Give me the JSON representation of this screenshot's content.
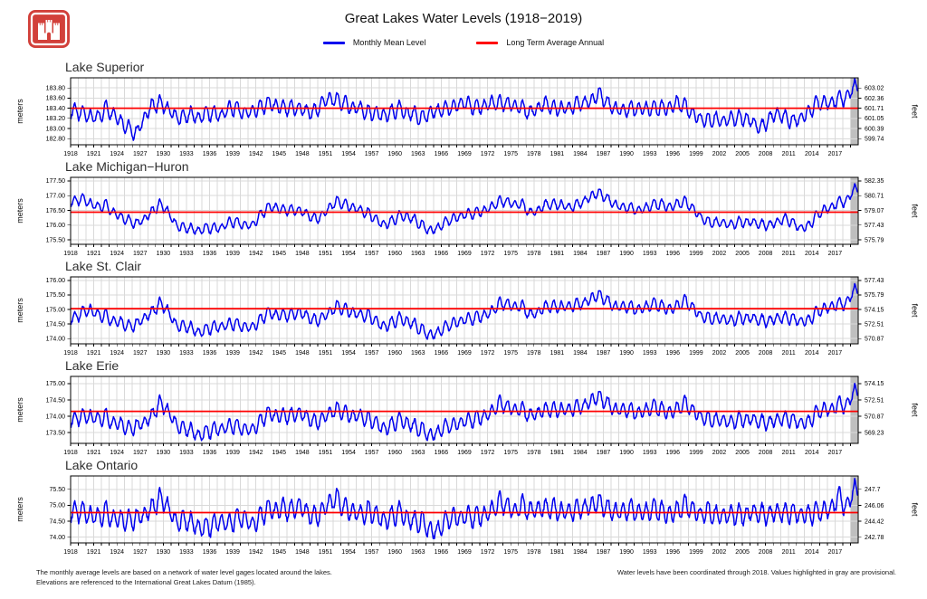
{
  "header": {
    "title": "Great Lakes Water Levels (1918−2019)",
    "logo": "usace-castle-logo",
    "legend": [
      {
        "label": "Monthly Mean Level",
        "color": "#0000ee"
      },
      {
        "label": "Long Term Average Annual",
        "color": "#ff0000"
      }
    ]
  },
  "footer": {
    "left_line1": "The monthly average levels are based on a network of water level gages located around the lakes.",
    "left_line2": "Elevations are referenced to the International Great Lakes Datum (1985).",
    "right_line": "Water levels have been coordinated through 2018. Values highlighted in gray are provisional."
  },
  "colors": {
    "monthly_line": "#0000ee",
    "average_line": "#ff0000",
    "grid": "#d9d9d9",
    "provisional_band": "#bfbfbf",
    "axis": "#000000",
    "logo_red": "#d2403a"
  },
  "x_axis": {
    "start": 1918,
    "end": 2020,
    "year_tick_labels": [
      1918,
      1921,
      1924,
      1927,
      1930,
      1933,
      1936,
      1939,
      1942,
      1945,
      1948,
      1951,
      1954,
      1957,
      1960,
      1963,
      1966,
      1969,
      1972,
      1975,
      1978,
      1981,
      1984,
      1987,
      1990,
      1993,
      1996,
      1999,
      2002,
      2005,
      2008,
      2011,
      2014,
      2017
    ]
  },
  "chart_data": [
    {
      "type": "line",
      "title": "Lake Superior",
      "ylabel_left": "meters",
      "ylabel_right": "feet",
      "ylim": [
        182.68,
        184.0
      ],
      "yticks_m": [
        "182.80",
        "183.00",
        "183.20",
        "183.40",
        "183.60",
        "183.80"
      ],
      "yticks_ft": [
        "599.74",
        "600.39",
        "601.05",
        "601.71",
        "602.36",
        "603.02"
      ],
      "long_term_avg_m": 183.4,
      "seasonal_amp_m": 0.13,
      "provisional_from": 2019,
      "annual_mean_m": [
        183.35,
        183.3,
        183.25,
        183.2,
        183.4,
        183.3,
        183.15,
        183.0,
        182.9,
        183.2,
        183.45,
        183.5,
        183.4,
        183.25,
        183.2,
        183.3,
        183.2,
        183.3,
        183.3,
        183.25,
        183.4,
        183.4,
        183.3,
        183.35,
        183.4,
        183.5,
        183.45,
        183.4,
        183.4,
        183.4,
        183.35,
        183.3,
        183.5,
        183.6,
        183.55,
        183.5,
        183.4,
        183.4,
        183.3,
        183.3,
        183.25,
        183.3,
        183.4,
        183.3,
        183.3,
        183.2,
        183.3,
        183.35,
        183.4,
        183.4,
        183.5,
        183.5,
        183.4,
        183.45,
        183.5,
        183.5,
        183.5,
        183.45,
        183.4,
        183.3,
        183.4,
        183.5,
        183.4,
        183.4,
        183.4,
        183.5,
        183.5,
        183.55,
        183.7,
        183.5,
        183.4,
        183.35,
        183.4,
        183.4,
        183.4,
        183.4,
        183.4,
        183.4,
        183.5,
        183.45,
        183.3,
        183.2,
        183.15,
        183.2,
        183.15,
        183.2,
        183.2,
        183.2,
        183.1,
        183.0,
        183.2,
        183.3,
        183.2,
        183.15,
        183.2,
        183.3,
        183.5,
        183.5,
        183.5,
        183.6,
        183.6,
        183.85
      ]
    },
    {
      "type": "line",
      "title": "Lake Michigan−Huron",
      "ylabel_left": "meters",
      "ylabel_right": "feet",
      "ylim": [
        175.35,
        177.62
      ],
      "yticks_m": [
        "175.50",
        "176.00",
        "176.50",
        "177.00",
        "177.50"
      ],
      "yticks_ft": [
        "575.79",
        "577.43",
        "579.07",
        "580.71",
        "582.35"
      ],
      "long_term_avg_m": 176.44,
      "seasonal_amp_m": 0.15,
      "provisional_from": 2019,
      "annual_mean_m": [
        176.8,
        176.9,
        176.75,
        176.6,
        176.7,
        176.45,
        176.3,
        176.15,
        176.05,
        176.2,
        176.45,
        176.7,
        176.5,
        176.05,
        175.9,
        175.9,
        175.8,
        175.9,
        175.9,
        175.9,
        176.1,
        176.1,
        176.0,
        176.0,
        176.3,
        176.6,
        176.6,
        176.5,
        176.5,
        176.5,
        176.4,
        176.2,
        176.3,
        176.6,
        176.8,
        176.7,
        176.6,
        176.5,
        176.4,
        176.2,
        176.0,
        176.1,
        176.3,
        176.3,
        176.2,
        176.0,
        175.8,
        175.9,
        176.1,
        176.2,
        176.3,
        176.4,
        176.4,
        176.5,
        176.6,
        176.8,
        176.8,
        176.7,
        176.7,
        176.4,
        176.5,
        176.7,
        176.7,
        176.7,
        176.6,
        176.7,
        176.8,
        177.0,
        177.1,
        176.9,
        176.7,
        176.6,
        176.6,
        176.5,
        176.6,
        176.7,
        176.7,
        176.6,
        176.7,
        176.8,
        176.6,
        176.3,
        176.1,
        176.1,
        176.1,
        176.0,
        176.1,
        176.1,
        176.1,
        176.0,
        176.0,
        176.1,
        176.2,
        176.1,
        175.9,
        175.95,
        176.3,
        176.5,
        176.6,
        176.8,
        176.8,
        177.25
      ]
    },
    {
      "type": "line",
      "title": "Lake St. Clair",
      "ylabel_left": "meters",
      "ylabel_right": "feet",
      "ylim": [
        173.82,
        176.12
      ],
      "yticks_m": [
        "174.00",
        "174.50",
        "175.00",
        "175.50",
        "176.00"
      ],
      "yticks_ft": [
        "570.87",
        "572.51",
        "574.15",
        "575.79",
        "577.43"
      ],
      "long_term_avg_m": 175.03,
      "seasonal_amp_m": 0.18,
      "provisional_from": 2019,
      "annual_mean_m": [
        174.7,
        174.9,
        175.0,
        174.8,
        174.8,
        174.6,
        174.6,
        174.4,
        174.5,
        174.7,
        174.9,
        175.2,
        175.0,
        174.5,
        174.4,
        174.4,
        174.2,
        174.3,
        174.4,
        174.4,
        174.5,
        174.5,
        174.4,
        174.4,
        174.6,
        174.9,
        174.8,
        174.8,
        174.8,
        174.9,
        174.8,
        174.6,
        174.7,
        174.9,
        175.1,
        175.0,
        174.9,
        174.8,
        174.8,
        174.6,
        174.4,
        174.5,
        174.7,
        174.6,
        174.5,
        174.3,
        174.1,
        174.2,
        174.4,
        174.5,
        174.6,
        174.7,
        174.7,
        174.8,
        174.9,
        175.2,
        175.2,
        175.1,
        175.1,
        174.8,
        174.9,
        175.1,
        175.1,
        175.1,
        175.1,
        175.2,
        175.2,
        175.4,
        175.5,
        175.3,
        175.1,
        175.1,
        175.1,
        175.0,
        175.1,
        175.2,
        175.1,
        175.0,
        175.1,
        175.3,
        175.1,
        174.8,
        174.7,
        174.7,
        174.7,
        174.6,
        174.7,
        174.7,
        174.7,
        174.6,
        174.6,
        174.7,
        174.7,
        174.7,
        174.6,
        174.6,
        174.9,
        175.0,
        175.1,
        175.2,
        175.2,
        175.7
      ]
    },
    {
      "type": "line",
      "title": "Lake Erie",
      "ylabel_left": "meters",
      "ylabel_right": "feet",
      "ylim": [
        173.17,
        175.22
      ],
      "yticks_m": [
        "173.50",
        "174.00",
        "174.50",
        "175.00"
      ],
      "yticks_ft": [
        "569.23",
        "570.87",
        "572.51",
        "574.15"
      ],
      "long_term_avg_m": 174.15,
      "seasonal_amp_m": 0.2,
      "provisional_from": 2019,
      "annual_mean_m": [
        173.9,
        174.0,
        174.0,
        173.9,
        174.0,
        173.8,
        173.8,
        173.6,
        173.7,
        173.8,
        174.0,
        174.4,
        174.2,
        173.8,
        173.6,
        173.6,
        173.4,
        173.5,
        173.6,
        173.6,
        173.7,
        173.7,
        173.6,
        173.6,
        173.8,
        174.1,
        174.0,
        174.0,
        174.0,
        174.1,
        174.0,
        173.8,
        173.9,
        174.1,
        174.2,
        174.1,
        174.0,
        174.0,
        173.9,
        173.8,
        173.6,
        173.7,
        173.9,
        173.8,
        173.7,
        173.6,
        173.4,
        173.5,
        173.7,
        173.7,
        173.8,
        173.9,
        173.9,
        174.0,
        174.1,
        174.4,
        174.3,
        174.2,
        174.2,
        174.0,
        174.1,
        174.2,
        174.2,
        174.2,
        174.2,
        174.3,
        174.3,
        174.5,
        174.6,
        174.4,
        174.2,
        174.2,
        174.2,
        174.1,
        174.2,
        174.3,
        174.2,
        174.1,
        174.2,
        174.4,
        174.2,
        174.0,
        173.9,
        173.9,
        173.9,
        173.8,
        173.9,
        173.9,
        173.9,
        173.8,
        173.8,
        173.9,
        173.9,
        173.9,
        173.8,
        173.8,
        174.1,
        174.2,
        174.2,
        174.4,
        174.3,
        174.8
      ]
    },
    {
      "type": "line",
      "title": "Lake Ontario",
      "ylabel_left": "meters",
      "ylabel_right": "feet",
      "ylim": [
        73.82,
        75.92
      ],
      "yticks_m": [
        "74.00",
        "74.50",
        "75.00",
        "75.50"
      ],
      "yticks_ft": [
        "242.78",
        "244.42",
        "246.06",
        "247.7"
      ],
      "long_term_avg_m": 74.77,
      "seasonal_amp_m": 0.28,
      "provisional_from": 2019,
      "annual_mean_m": [
        74.8,
        74.8,
        74.7,
        74.6,
        74.8,
        74.6,
        74.6,
        74.5,
        74.6,
        74.7,
        74.9,
        75.2,
        75.0,
        74.5,
        74.5,
        74.5,
        74.3,
        74.3,
        74.4,
        74.5,
        74.4,
        74.6,
        74.6,
        74.4,
        74.6,
        74.9,
        74.8,
        74.9,
        74.8,
        75.0,
        74.8,
        74.6,
        74.8,
        75.1,
        75.2,
        74.9,
        74.8,
        74.7,
        74.8,
        74.7,
        74.5,
        74.6,
        74.8,
        74.6,
        74.5,
        74.5,
        74.2,
        74.2,
        74.5,
        74.6,
        74.6,
        74.7,
        74.6,
        74.7,
        74.8,
        75.1,
        75.0,
        74.8,
        75.0,
        74.8,
        74.9,
        74.9,
        74.9,
        74.8,
        74.8,
        74.9,
        74.9,
        75.0,
        75.1,
        74.9,
        74.8,
        74.8,
        74.9,
        74.8,
        74.8,
        74.9,
        74.8,
        74.7,
        74.8,
        75.0,
        74.9,
        74.7,
        74.8,
        74.7,
        74.7,
        74.7,
        74.7,
        74.7,
        74.8,
        74.7,
        74.7,
        74.8,
        74.7,
        74.8,
        74.7,
        74.7,
        74.8,
        74.8,
        74.9,
        75.3,
        74.9,
        75.55
      ]
    }
  ]
}
